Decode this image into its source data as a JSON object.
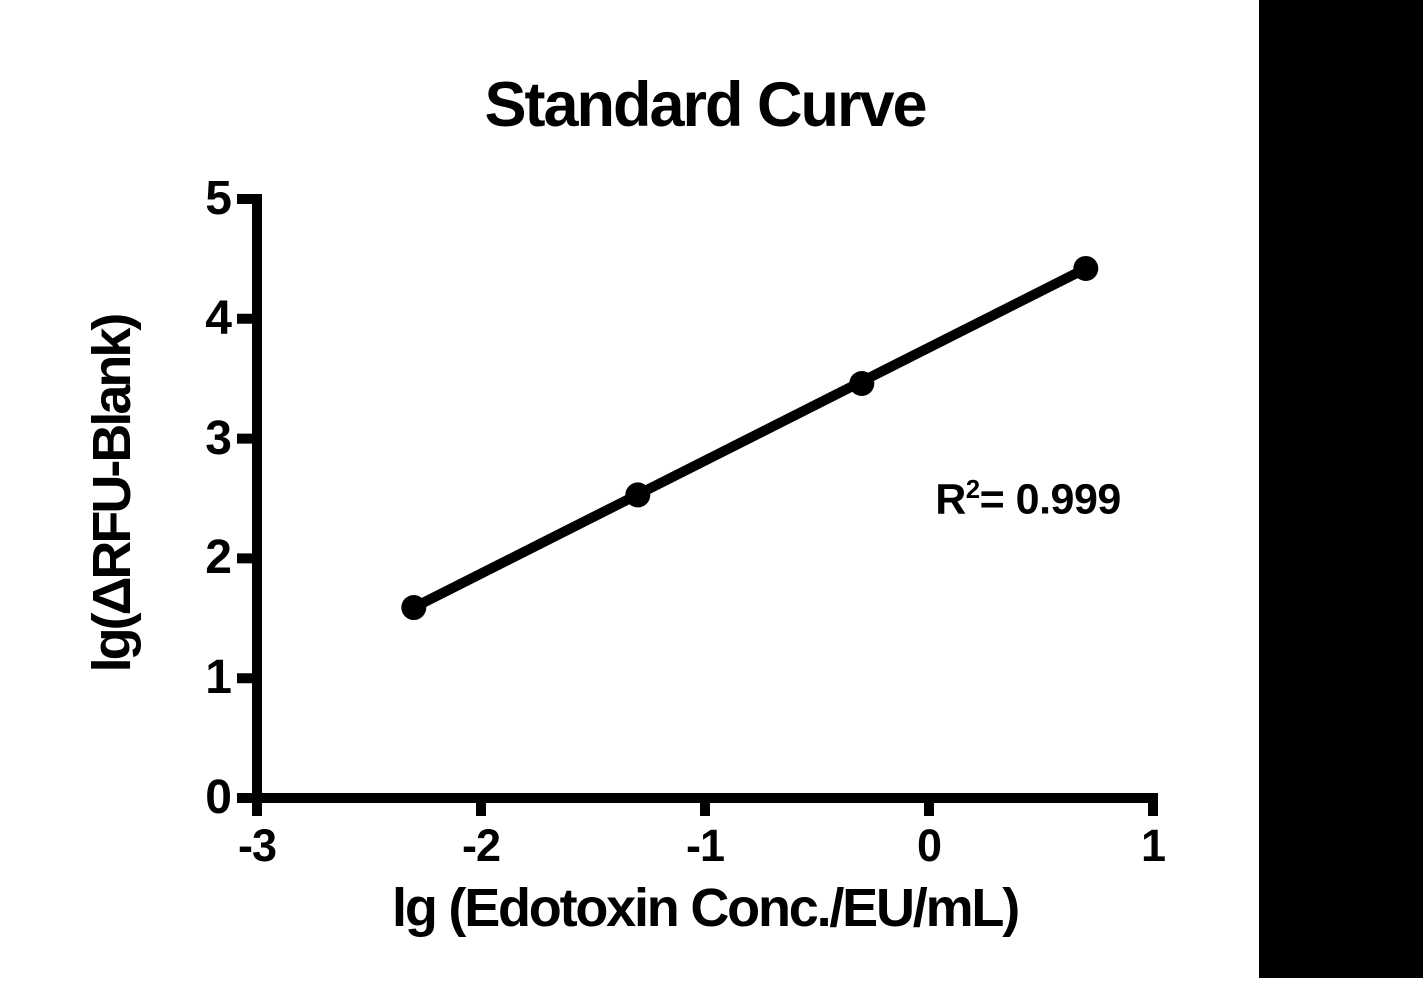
{
  "title": "Standard Curve",
  "annotation": {
    "r_base": "R",
    "r_sup": "2",
    "r_rest": "= 0.999"
  },
  "chart_data": {
    "type": "scatter",
    "title": "Standard Curve",
    "xlabel": "lg (Edotoxin Conc./EU/mL)",
    "ylabel": "lg(ΔRFU-Blank)",
    "x": [
      -2.3,
      -1.3,
      -0.3,
      0.7
    ],
    "y": [
      1.59,
      2.53,
      3.46,
      4.42
    ],
    "fit_line": true,
    "r_squared": "0.999",
    "xlim": [
      -3,
      1
    ],
    "ylim": [
      0,
      5
    ],
    "x_ticks": [
      -3,
      -2,
      -1,
      0,
      1
    ],
    "y_ticks": [
      0,
      1,
      2,
      3,
      4,
      5
    ],
    "grid": false,
    "legend": false,
    "marker": "circle",
    "marker_color": "#000000",
    "line_color": "#000000"
  },
  "colors": {
    "background": "#ffffff",
    "sidebar": "#000000",
    "ink": "#000000"
  }
}
